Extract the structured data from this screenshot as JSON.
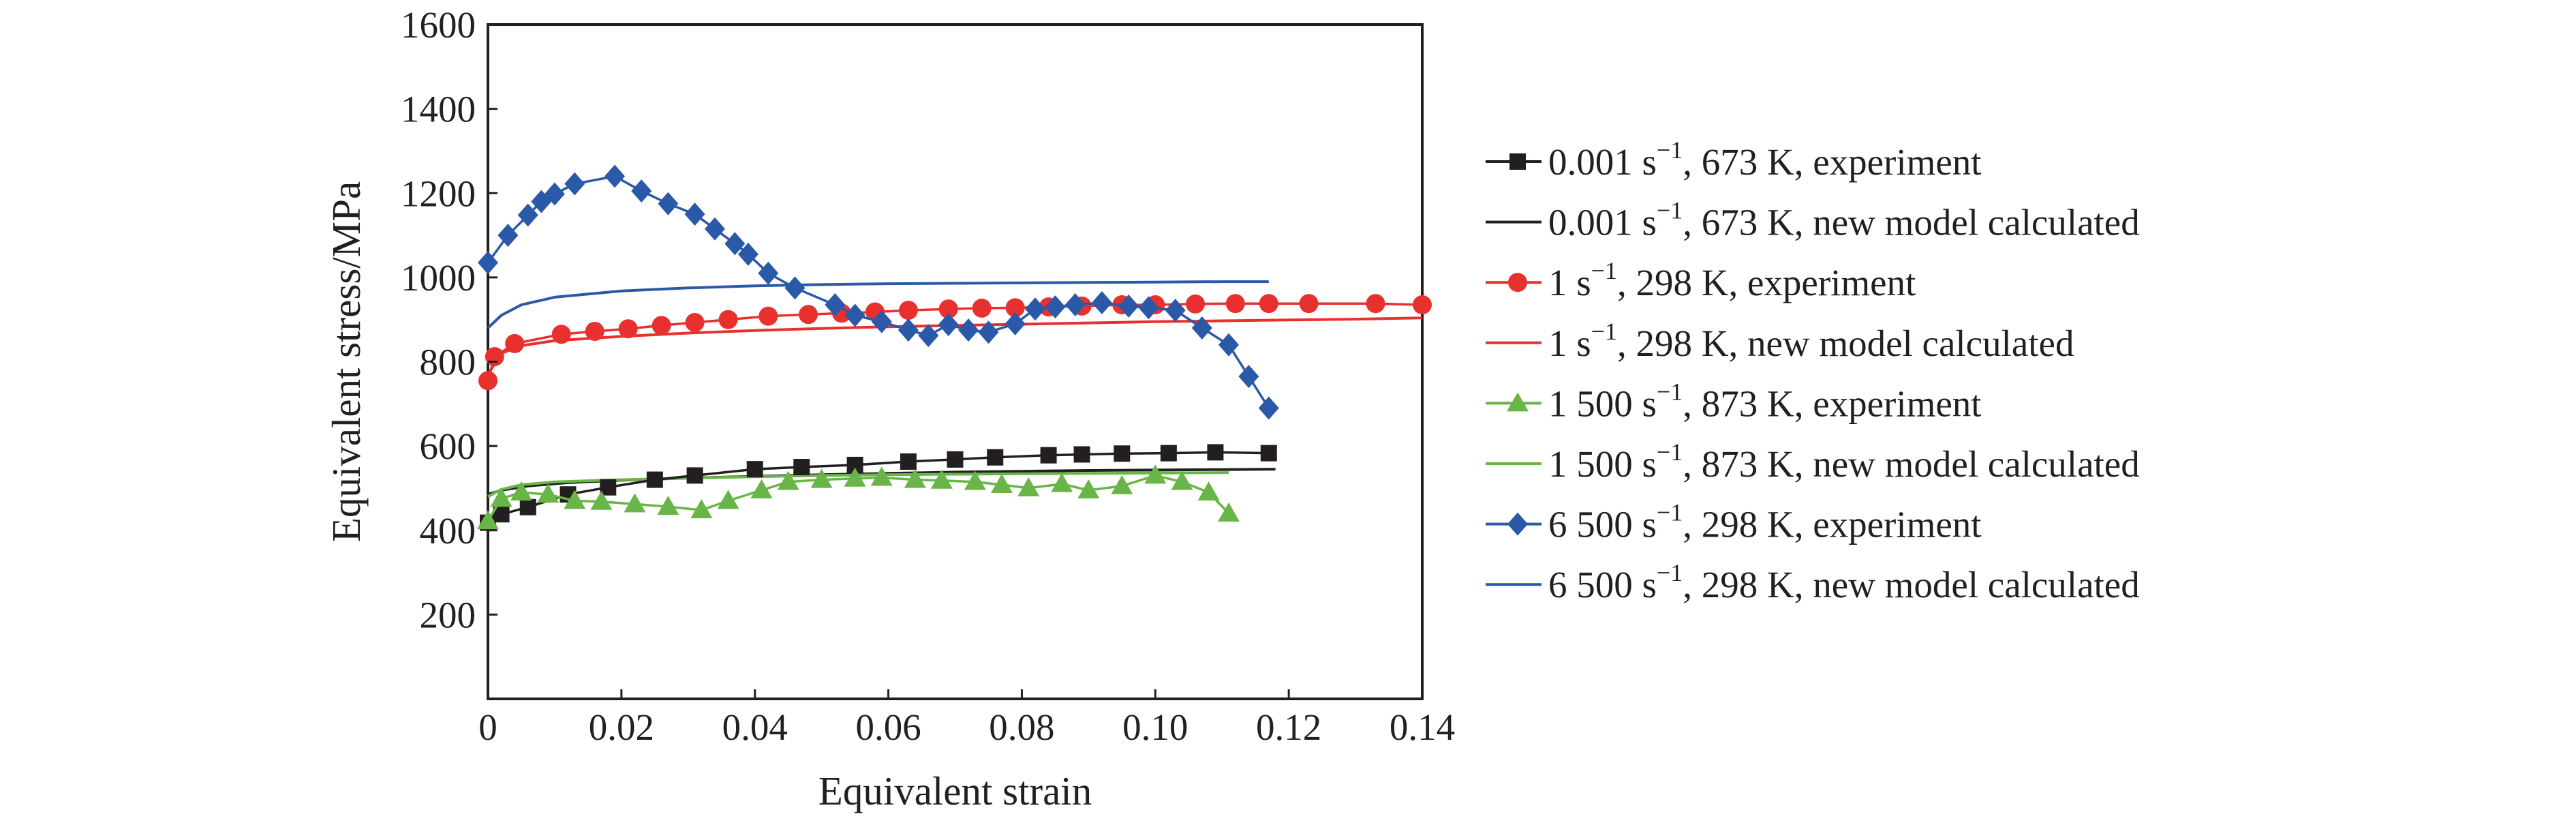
{
  "chart_data": {
    "type": "line",
    "xlabel": "Equivalent strain",
    "ylabel": "Equivalent stress/MPa",
    "xlim": [
      0,
      0.14
    ],
    "ylim": [
      0,
      1600
    ],
    "x_ticks": [
      "0",
      "0.02",
      "0.04",
      "0.06",
      "0.08",
      "0.10",
      "0.12",
      "0.14"
    ],
    "y_ticks": [
      "200",
      "400",
      "600",
      "800",
      "1000",
      "1200",
      "1400",
      "1600"
    ],
    "grid": false,
    "legend_position": "right",
    "series": [
      {
        "name_parts": [
          "0.001 s",
          "−1",
          ", 673 K, experiment"
        ],
        "kind": "experiment",
        "marker": "square",
        "color": "#231f20",
        "x": [
          0,
          0.002,
          0.006,
          0.012,
          0.018,
          0.025,
          0.031,
          0.04,
          0.047,
          0.055,
          0.063,
          0.07,
          0.076,
          0.084,
          0.089,
          0.095,
          0.102,
          0.109,
          0.117
        ],
        "y": [
          418,
          438,
          455,
          485,
          502,
          520,
          530,
          545,
          550,
          555,
          563,
          568,
          573,
          578,
          580,
          582,
          583,
          585,
          583
        ]
      },
      {
        "name_parts": [
          "0.001 s",
          "−1",
          ", 673 K, new model calculated"
        ],
        "kind": "model",
        "color": "#231f20",
        "x": [
          0,
          0.002,
          0.006,
          0.012,
          0.02,
          0.03,
          0.04,
          0.05,
          0.06,
          0.07,
          0.08,
          0.09,
          0.1,
          0.11,
          0.118
        ],
        "y": [
          485,
          495,
          505,
          513,
          519,
          524,
          528,
          532,
          535,
          538,
          540,
          542,
          543,
          544,
          545
        ]
      },
      {
        "name_parts": [
          "1 s",
          "−1",
          ", 298 K, experiment"
        ],
        "kind": "experiment",
        "marker": "circle",
        "color": "#e8312f",
        "x": [
          0,
          0.001,
          0.004,
          0.011,
          0.016,
          0.021,
          0.026,
          0.031,
          0.036,
          0.042,
          0.048,
          0.053,
          0.058,
          0.063,
          0.069,
          0.074,
          0.079,
          0.084,
          0.089,
          0.095,
          0.1,
          0.106,
          0.112,
          0.117,
          0.123,
          0.133,
          0.14
        ],
        "y": [
          755,
          812,
          843,
          865,
          872,
          878,
          886,
          893,
          900,
          908,
          912,
          915,
          918,
          922,
          925,
          927,
          928,
          930,
          932,
          935,
          935,
          937,
          938,
          938,
          938,
          938,
          935
        ]
      },
      {
        "name_parts": [
          "1 s",
          "−1",
          ", 298 K, new model calculated"
        ],
        "kind": "model",
        "color": "#e8312f",
        "x": [
          0,
          0.002,
          0.005,
          0.01,
          0.02,
          0.03,
          0.04,
          0.05,
          0.06,
          0.07,
          0.08,
          0.09,
          0.1,
          0.11,
          0.12,
          0.13,
          0.14
        ],
        "y": [
          770,
          820,
          838,
          850,
          860,
          868,
          874,
          879,
          883,
          886,
          889,
          892,
          895,
          897,
          899,
          901,
          904
        ]
      },
      {
        "name_parts": [
          "1 500 s",
          "−1",
          ", 873 K, experiment"
        ],
        "kind": "experiment",
        "marker": "triangle",
        "color": "#6ab547",
        "x": [
          0,
          0.002,
          0.005,
          0.009,
          0.013,
          0.017,
          0.022,
          0.027,
          0.032,
          0.036,
          0.041,
          0.045,
          0.05,
          0.055,
          0.059,
          0.064,
          0.068,
          0.073,
          0.077,
          0.081,
          0.086,
          0.09,
          0.095,
          0.1,
          0.104,
          0.108,
          0.111
        ],
        "y": [
          422,
          475,
          490,
          485,
          470,
          468,
          462,
          456,
          448,
          470,
          495,
          515,
          520,
          523,
          525,
          520,
          518,
          515,
          508,
          500,
          510,
          495,
          505,
          530,
          515,
          490,
          440
        ]
      },
      {
        "name_parts": [
          "1 500 s",
          "−1",
          ", 873 K, new model calculated"
        ],
        "kind": "model",
        "color": "#6ab547",
        "x": [
          0,
          0.002,
          0.005,
          0.01,
          0.02,
          0.03,
          0.04,
          0.05,
          0.06,
          0.07,
          0.08,
          0.09,
          0.1,
          0.111
        ],
        "y": [
          480,
          497,
          508,
          515,
          520,
          524,
          527,
          530,
          532,
          533,
          534,
          535,
          536,
          537
        ]
      },
      {
        "name_parts": [
          "6 500 s",
          "−1",
          ", 298 K, experiment"
        ],
        "kind": "experiment",
        "marker": "diamond",
        "color": "#2a59a8",
        "x": [
          0,
          0.003,
          0.006,
          0.008,
          0.01,
          0.013,
          0.019,
          0.023,
          0.027,
          0.031,
          0.034,
          0.037,
          0.039,
          0.042,
          0.046,
          0.052,
          0.055,
          0.059,
          0.063,
          0.066,
          0.069,
          0.072,
          0.075,
          0.079,
          0.082,
          0.085,
          0.088,
          0.092,
          0.096,
          0.099,
          0.103,
          0.107,
          0.111,
          0.114,
          0.117
        ],
        "y": [
          1035,
          1100,
          1148,
          1180,
          1198,
          1222,
          1240,
          1205,
          1175,
          1150,
          1115,
          1080,
          1055,
          1010,
          975,
          935,
          910,
          895,
          875,
          862,
          888,
          875,
          870,
          890,
          925,
          930,
          935,
          940,
          932,
          928,
          922,
          880,
          840,
          765,
          690
        ]
      },
      {
        "name_parts": [
          "6 500 s",
          "−1",
          ", 298 K, new model calculated"
        ],
        "kind": "model",
        "color": "#2a59a8",
        "x": [
          0,
          0.002,
          0.005,
          0.01,
          0.02,
          0.03,
          0.04,
          0.05,
          0.06,
          0.07,
          0.08,
          0.09,
          0.1,
          0.11,
          0.117
        ],
        "y": [
          880,
          910,
          935,
          953,
          968,
          975,
          980,
          983,
          985,
          986,
          987,
          988,
          989,
          990,
          990
        ]
      }
    ]
  }
}
